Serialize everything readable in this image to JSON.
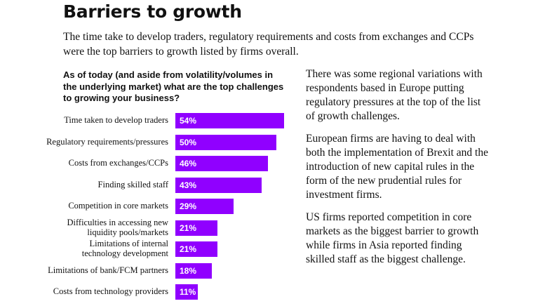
{
  "header": {
    "title": "Barriers to growth"
  },
  "intro": "The time take to develop traders, regulatory requirements and costs from exchanges and CCPs were the top barriers to growth listed by firms overall.",
  "chart_data": {
    "type": "bar",
    "orientation": "horizontal",
    "title": "As of today (and aside from volatility/volumes in the underlying market) what are the top challenges to growing your business?",
    "categories": [
      "Time taken to develop traders",
      "Regulatory requirements/pressures",
      "Costs from exchanges/CCPs",
      "Finding skilled staff",
      "Competition in core markets",
      "Difficulties in accessing new\nliquidity pools/markets",
      "Limitations of internal\ntechnology development",
      "Limitations of bank/FCM partners",
      "Costs from technology providers"
    ],
    "values": [
      54,
      50,
      46,
      43,
      29,
      21,
      21,
      18,
      11
    ],
    "value_labels": [
      "54%",
      "50%",
      "46%",
      "43%",
      "29%",
      "21%",
      "21%",
      "18%",
      "11%"
    ],
    "color": "#9000ff"
  },
  "paragraphs": [
    "There was some regional variations with respondents based in Europe putting regulatory pressures at the top of the list of growth challenges.",
    "European firms are having to deal with both the implementation of Brexit and the introduction of new capital rules in the form of the new prudential rules for investment firms.",
    "US firms reported competition in core markets as the biggest barrier to growth while firms in Asia reported finding skilled staff as the biggest challenge."
  ]
}
